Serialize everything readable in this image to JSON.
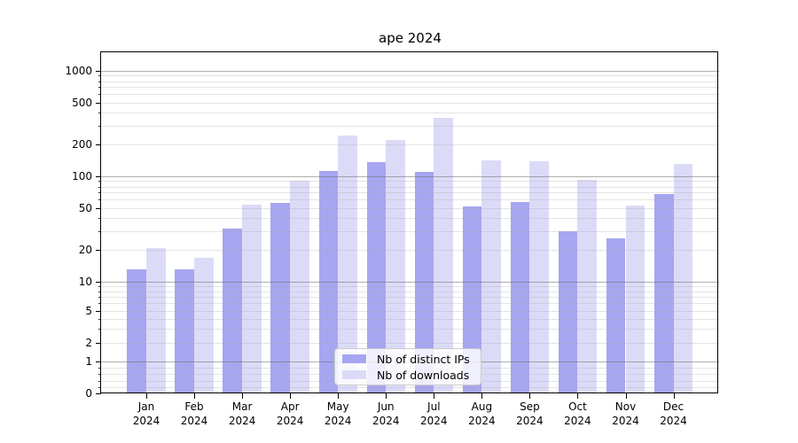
{
  "chart_data": {
    "type": "bar",
    "title": "ape 2024",
    "yscale": "symlog",
    "ylim": [
      0,
      1500
    ],
    "grid": true,
    "legend_position": "lower center",
    "ytick_labels": [
      "0",
      "1",
      "2",
      "5",
      "10",
      "20",
      "50",
      "100",
      "200",
      "500",
      "1000"
    ],
    "ytick_values": [
      0,
      1,
      2,
      5,
      10,
      20,
      50,
      100,
      200,
      500,
      1000
    ],
    "categories": [
      "Jan",
      "Feb",
      "Mar",
      "Apr",
      "May",
      "Jun",
      "Jul",
      "Aug",
      "Sep",
      "Oct",
      "Nov",
      "Dec"
    ],
    "category_year": "2024",
    "series": [
      {
        "name": "Nb of distinct IPs",
        "color": "#a6a6f1",
        "values": [
          13,
          13,
          32,
          56,
          112,
          137,
          110,
          52,
          57,
          30,
          26,
          68
        ]
      },
      {
        "name": "Nb of downloads",
        "color": "#dbdbf8",
        "values": [
          21,
          17,
          54,
          90,
          245,
          220,
          360,
          143,
          140,
          93,
          53,
          130
        ]
      }
    ],
    "colors": {
      "major_grid": "#9a9a9a",
      "minor_grid": "#dedede",
      "axis": "#000000",
      "legend_border": "#cccccc"
    }
  }
}
